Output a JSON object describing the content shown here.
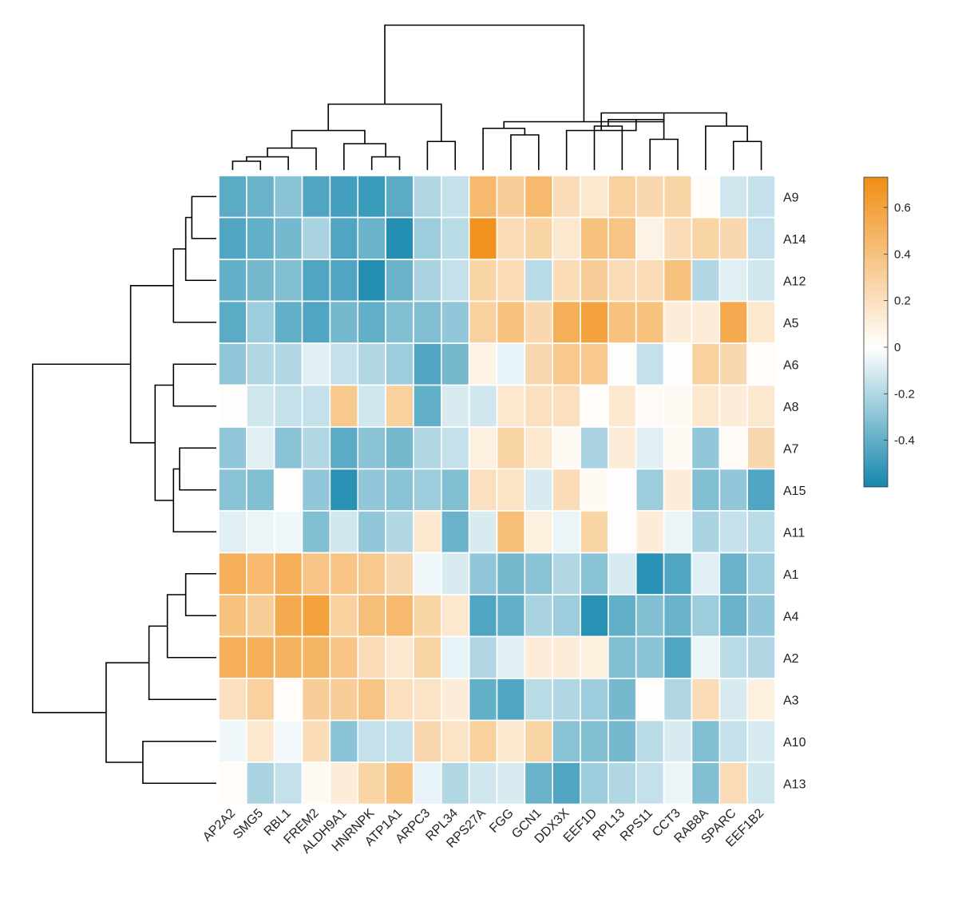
{
  "chart_data": {
    "type": "heatmap",
    "title": "",
    "columns": [
      "AP2A2",
      "SMG5",
      "RBL1",
      "FREM2",
      "ALDH9A1",
      "HNRNPK",
      "ATP1A1",
      "ARPC3",
      "RPL34",
      "RPS27A",
      "FGG",
      "GCN1",
      "DDX3X",
      "EEF1D",
      "RPL13",
      "RPS11",
      "CCT3",
      "RAB8A",
      "SPARC",
      "EEF1B2"
    ],
    "rows": [
      "A9",
      "A14",
      "A12",
      "A5",
      "A6",
      "A8",
      "A7",
      "A15",
      "A11",
      "A1",
      "A4",
      "A2",
      "A3",
      "A10",
      "A13"
    ],
    "values": [
      [
        -0.42,
        -0.38,
        -0.3,
        -0.45,
        -0.48,
        -0.5,
        -0.42,
        -0.2,
        -0.15,
        0.45,
        0.32,
        0.45,
        0.22,
        0.15,
        0.3,
        0.25,
        0.28,
        0.02,
        -0.12,
        -0.15
      ],
      [
        -0.45,
        -0.4,
        -0.35,
        -0.22,
        -0.45,
        -0.38,
        -0.56,
        -0.25,
        -0.18,
        0.7,
        0.22,
        0.28,
        0.15,
        0.4,
        0.38,
        0.08,
        0.22,
        0.28,
        0.25,
        -0.15
      ],
      [
        -0.4,
        -0.35,
        -0.32,
        -0.45,
        -0.45,
        -0.56,
        -0.38,
        -0.22,
        -0.15,
        0.28,
        0.22,
        -0.18,
        0.22,
        0.32,
        0.22,
        0.22,
        0.4,
        -0.2,
        -0.08,
        -0.12
      ],
      [
        -0.42,
        -0.25,
        -0.4,
        -0.45,
        -0.35,
        -0.4,
        -0.32,
        -0.32,
        -0.28,
        0.3,
        0.4,
        0.25,
        0.52,
        0.6,
        0.4,
        0.4,
        0.12,
        0.12,
        0.55,
        0.15
      ],
      [
        -0.28,
        -0.2,
        -0.2,
        -0.08,
        -0.15,
        -0.2,
        -0.25,
        -0.45,
        -0.35,
        0.08,
        -0.06,
        0.25,
        0.35,
        0.35,
        0.01,
        -0.15,
        0.01,
        0.3,
        0.25,
        0.02
      ],
      [
        0.01,
        -0.12,
        -0.15,
        -0.15,
        0.35,
        -0.12,
        0.3,
        -0.4,
        -0.1,
        -0.12,
        0.15,
        0.2,
        0.2,
        0.02,
        0.15,
        0.03,
        0.04,
        0.15,
        0.12,
        0.15
      ],
      [
        -0.28,
        -0.08,
        -0.3,
        -0.2,
        -0.42,
        -0.3,
        -0.35,
        -0.2,
        -0.15,
        0.1,
        0.28,
        0.15,
        0.04,
        -0.22,
        0.12,
        -0.08,
        0.04,
        -0.28,
        0.03,
        0.25
      ],
      [
        -0.3,
        -0.32,
        0.01,
        -0.28,
        -0.55,
        -0.28,
        -0.3,
        -0.25,
        -0.32,
        0.2,
        0.18,
        -0.1,
        0.22,
        0.04,
        0.01,
        -0.25,
        0.12,
        -0.32,
        -0.28,
        -0.45
      ],
      [
        -0.08,
        -0.05,
        -0.04,
        -0.32,
        -0.12,
        -0.28,
        -0.2,
        0.15,
        -0.38,
        -0.1,
        0.42,
        0.1,
        -0.05,
        0.28,
        0.01,
        0.12,
        -0.05,
        -0.22,
        -0.15,
        -0.18
      ],
      [
        0.52,
        0.45,
        0.52,
        0.38,
        0.38,
        0.35,
        0.25,
        -0.04,
        -0.1,
        -0.28,
        -0.35,
        -0.3,
        -0.2,
        -0.3,
        -0.1,
        -0.55,
        -0.45,
        -0.08,
        -0.38,
        -0.25
      ],
      [
        0.4,
        0.32,
        0.55,
        0.6,
        0.3,
        0.42,
        0.45,
        0.28,
        0.15,
        -0.45,
        -0.4,
        -0.22,
        -0.25,
        -0.55,
        -0.4,
        -0.32,
        -0.38,
        -0.25,
        -0.38,
        -0.28
      ],
      [
        0.52,
        0.52,
        0.5,
        0.48,
        0.38,
        0.22,
        0.15,
        0.28,
        -0.06,
        -0.2,
        -0.08,
        0.12,
        0.12,
        0.1,
        -0.32,
        -0.3,
        -0.45,
        -0.05,
        -0.18,
        -0.2
      ],
      [
        0.2,
        0.3,
        0.02,
        0.32,
        0.32,
        0.38,
        0.2,
        0.18,
        0.12,
        -0.4,
        -0.45,
        -0.18,
        -0.2,
        -0.25,
        -0.35,
        0.01,
        -0.2,
        0.22,
        -0.1,
        0.1
      ],
      [
        -0.04,
        0.15,
        -0.03,
        0.22,
        -0.3,
        -0.15,
        -0.15,
        0.25,
        0.18,
        0.3,
        0.15,
        0.28,
        -0.3,
        -0.32,
        -0.35,
        -0.18,
        -0.1,
        -0.32,
        -0.15,
        -0.1
      ],
      [
        0.02,
        -0.22,
        -0.15,
        0.04,
        0.12,
        0.28,
        0.4,
        -0.06,
        -0.2,
        -0.12,
        -0.1,
        -0.38,
        -0.45,
        -0.25,
        -0.2,
        -0.15,
        -0.05,
        -0.32,
        0.22,
        -0.12
      ]
    ],
    "colorbar": {
      "range": [
        -0.6,
        0.73
      ],
      "ticks": [
        0.6,
        0.4,
        0.2,
        0,
        -0.2,
        -0.4
      ],
      "tick_labels": [
        "0.6",
        "0.4",
        "0.2",
        "0",
        "-0.2",
        "-0.4"
      ],
      "low_color": "#1487ad",
      "mid_color": "#ffffff",
      "high_color": "#f08e14"
    },
    "column_dendrogram": [
      {
        "a": 0,
        "b": 1,
        "h": 0.4
      },
      {
        "a": 20,
        "b": 2,
        "h": 0.6
      },
      {
        "a": 21,
        "b": 3,
        "h": 1.0
      },
      {
        "a": 5,
        "b": 6,
        "h": 0.6
      },
      {
        "a": 4,
        "b": 23,
        "h": 1.2
      },
      {
        "a": 22,
        "b": 24,
        "h": 1.8
      },
      {
        "a": 7,
        "b": 8,
        "h": 1.3
      },
      {
        "a": 25,
        "b": 26,
        "h": 3.0
      },
      {
        "a": 10,
        "b": 11,
        "h": 1.6
      },
      {
        "a": 9,
        "b": 28,
        "h": 1.9
      },
      {
        "a": 13,
        "b": 14,
        "h": 2.0
      },
      {
        "a": 15,
        "b": 16,
        "h": 1.4
      },
      {
        "a": 30,
        "b": 31,
        "h": 2.3
      },
      {
        "a": 12,
        "b": 32,
        "h": 1.8
      },
      {
        "a": 18,
        "b": 19,
        "h": 1.3
      },
      {
        "a": 17,
        "b": 34,
        "h": 2.0
      },
      {
        "a": 33,
        "b": 35,
        "h": 2.6
      },
      {
        "a": 29,
        "b": 36,
        "h": 2.2
      },
      {
        "a": 27,
        "b": 37,
        "h": 6.6
      }
    ],
    "row_dendrogram": [
      {
        "a": 0,
        "b": 1,
        "h": 0.4
      },
      {
        "a": 15,
        "b": 2,
        "h": 0.5
      },
      {
        "a": 16,
        "b": 3,
        "h": 0.7
      },
      {
        "a": 4,
        "b": 5,
        "h": 0.7
      },
      {
        "a": 6,
        "b": 7,
        "h": 0.6
      },
      {
        "a": 19,
        "b": 8,
        "h": 0.7
      },
      {
        "a": 18,
        "b": 20,
        "h": 1.0
      },
      {
        "a": 17,
        "b": 21,
        "h": 1.4
      },
      {
        "a": 9,
        "b": 10,
        "h": 0.5
      },
      {
        "a": 23,
        "b": 11,
        "h": 0.8
      },
      {
        "a": 24,
        "b": 12,
        "h": 1.1
      },
      {
        "a": 13,
        "b": 14,
        "h": 1.2
      },
      {
        "a": 25,
        "b": 26,
        "h": 1.8
      },
      {
        "a": 22,
        "b": 27,
        "h": 3.0
      }
    ]
  }
}
